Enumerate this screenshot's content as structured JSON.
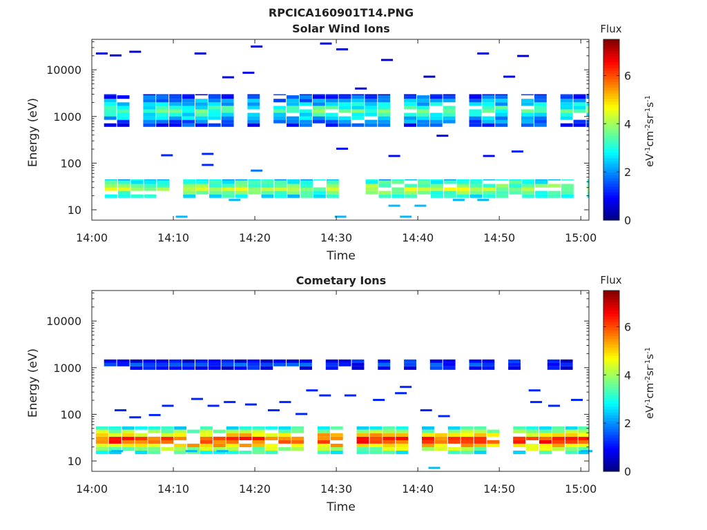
{
  "figure_title": "RPCICA160901T14.PNG",
  "colors": {
    "colormap": [
      "#00007f",
      "#0000ff",
      "#007fff",
      "#00ffff",
      "#7fff7f",
      "#ffff00",
      "#ff7f00",
      "#ff0000",
      "#7f0000"
    ]
  },
  "chart_data": [
    {
      "type": "heatmap",
      "title": "Solar Wind Ions",
      "xlabel": "Time",
      "ylabel": "Energy (eV)",
      "x_ticks": [
        "14:00",
        "14:10",
        "14:20",
        "14:30",
        "14:40",
        "14:50",
        "15:00"
      ],
      "xlim_minutes": [
        0,
        61
      ],
      "y_scale": "log",
      "y_ticks": [
        "10",
        "100",
        "1000",
        "10000"
      ],
      "ylim": [
        6,
        45000
      ],
      "colorbar": {
        "label": "Flux",
        "units": "eV-1 cm-2 sr-1 s-1",
        "range": [
          0,
          7.5
        ],
        "ticks": [
          "0",
          "2",
          "4",
          "6"
        ]
      },
      "bands": [
        {
          "name": "solar-wind-main",
          "t_start": 1.5,
          "t_end": 61,
          "e_low": 600,
          "e_high": 3000,
          "flux_center": 3.5,
          "flux_edge": 1.0
        },
        {
          "name": "low-energy",
          "t_start": 0,
          "t_end": 61,
          "e_low": 18,
          "e_high": 45,
          "flux_center": 4.2,
          "flux_edge": 2.5
        }
      ],
      "scattered_points": [
        {
          "t": 0.5,
          "e": 22000,
          "flux": 0.6
        },
        {
          "t": 2.2,
          "e": 20000,
          "flux": 0.6
        },
        {
          "t": 4.6,
          "e": 24000,
          "flux": 0.6
        },
        {
          "t": 12.6,
          "e": 22000,
          "flux": 0.6
        },
        {
          "t": 19.5,
          "e": 31000,
          "flux": 0.6
        },
        {
          "t": 28.0,
          "e": 36000,
          "flux": 0.6
        },
        {
          "t": 30.0,
          "e": 27000,
          "flux": 0.6
        },
        {
          "t": 47.3,
          "e": 22000,
          "flux": 0.6
        },
        {
          "t": 52.2,
          "e": 19500,
          "flux": 0.6
        },
        {
          "t": 35.5,
          "e": 16000,
          "flux": 0.6
        },
        {
          "t": 40.7,
          "e": 7000,
          "flux": 0.4
        },
        {
          "t": 50.5,
          "e": 7000,
          "flux": 0.8
        },
        {
          "t": 16.0,
          "e": 6800,
          "flux": 0.8
        },
        {
          "t": 18.5,
          "e": 8500,
          "flux": 0.8
        },
        {
          "t": 32.3,
          "e": 3900,
          "flux": 0.8
        },
        {
          "t": 30.0,
          "e": 200,
          "flux": 1.0
        },
        {
          "t": 36.4,
          "e": 140,
          "flux": 1.0
        },
        {
          "t": 42.3,
          "e": 380,
          "flux": 0.8
        },
        {
          "t": 48.0,
          "e": 140,
          "flux": 1.0
        },
        {
          "t": 51.5,
          "e": 175,
          "flux": 1.2
        },
        {
          "t": 13.5,
          "e": 155,
          "flux": 1.2
        },
        {
          "t": 8.5,
          "e": 145,
          "flux": 1.2
        },
        {
          "t": 13.5,
          "e": 90,
          "flux": 1.2
        },
        {
          "t": 19.5,
          "e": 68,
          "flux": 1.8
        },
        {
          "t": 36.4,
          "e": 12,
          "flux": 2.3
        },
        {
          "t": 37.8,
          "e": 7,
          "flux": 2.3
        },
        {
          "t": 39.6,
          "e": 12,
          "flux": 2.3
        },
        {
          "t": 10.3,
          "e": 7,
          "flux": 2.3
        },
        {
          "t": 29.8,
          "e": 7,
          "flux": 2.3
        },
        {
          "t": 16.8,
          "e": 16,
          "flux": 2.3
        },
        {
          "t": 44.3,
          "e": 16,
          "flux": 2.3
        },
        {
          "t": 47.3,
          "e": 16,
          "flux": 2.3
        }
      ]
    },
    {
      "type": "heatmap",
      "title": "Cometary Ions",
      "xlabel": "Time",
      "ylabel": "Energy (eV)",
      "x_ticks": [
        "14:00",
        "14:10",
        "14:20",
        "14:30",
        "14:40",
        "14:50",
        "15:00"
      ],
      "xlim_minutes": [
        0,
        61
      ],
      "y_scale": "log",
      "y_ticks": [
        "10",
        "100",
        "1000",
        "10000"
      ],
      "ylim": [
        6,
        45000
      ],
      "colorbar": {
        "label": "Flux",
        "units": "eV-1 cm-2 sr-1 s-1",
        "range": [
          0,
          7.5
        ],
        "ticks": [
          "0",
          "2",
          "4",
          "6"
        ]
      },
      "bands": [
        {
          "name": "high-energy",
          "t_start": 1.5,
          "t_end": 59,
          "e_low": 900,
          "e_high": 1500,
          "flux_center": 1.3,
          "flux_edge": 0.9
        },
        {
          "name": "low-energy",
          "t_start": 0.5,
          "t_end": 61,
          "e_low": 14,
          "e_high": 55,
          "flux_center": 6.5,
          "flux_edge": 2.5
        }
      ],
      "scattered_points": [
        {
          "t": 31.0,
          "e": 250,
          "flux": 1.2
        },
        {
          "t": 34.5,
          "e": 200,
          "flux": 1.2
        },
        {
          "t": 37.2,
          "e": 280,
          "flux": 1.2
        },
        {
          "t": 37.8,
          "e": 380,
          "flux": 1.2
        },
        {
          "t": 26.3,
          "e": 320,
          "flux": 1.2
        },
        {
          "t": 27.9,
          "e": 250,
          "flux": 1.2
        },
        {
          "t": 40.3,
          "e": 120,
          "flux": 1.2
        },
        {
          "t": 53.6,
          "e": 320,
          "flux": 1.2
        },
        {
          "t": 53.8,
          "e": 180,
          "flux": 1.2
        },
        {
          "t": 56.0,
          "e": 150,
          "flux": 1.2
        },
        {
          "t": 58.8,
          "e": 200,
          "flux": 1.2
        },
        {
          "t": 18.8,
          "e": 160,
          "flux": 1.2
        },
        {
          "t": 23.0,
          "e": 180,
          "flux": 1.2
        },
        {
          "t": 21.6,
          "e": 120,
          "flux": 1.2
        },
        {
          "t": 12.2,
          "e": 210,
          "flux": 1.2
        },
        {
          "t": 14.2,
          "e": 150,
          "flux": 1.2
        },
        {
          "t": 16.2,
          "e": 180,
          "flux": 1.2
        },
        {
          "t": 8.6,
          "e": 150,
          "flux": 1.2
        },
        {
          "t": 4.6,
          "e": 85,
          "flux": 1.2
        },
        {
          "t": 2.8,
          "e": 120,
          "flux": 1.2
        },
        {
          "t": 7.0,
          "e": 95,
          "flux": 1.2
        },
        {
          "t": 25.0,
          "e": 100,
          "flux": 1.2
        },
        {
          "t": 42.5,
          "e": 90,
          "flux": 1.2
        },
        {
          "t": 41.3,
          "e": 7,
          "flux": 2.3
        },
        {
          "t": 15.3,
          "e": 16,
          "flux": 2.3
        },
        {
          "t": 11.5,
          "e": 16,
          "flux": 2.3
        },
        {
          "t": 60.0,
          "e": 16,
          "flux": 2.3
        },
        {
          "t": 2.4,
          "e": 16,
          "flux": 2.3
        }
      ]
    }
  ]
}
